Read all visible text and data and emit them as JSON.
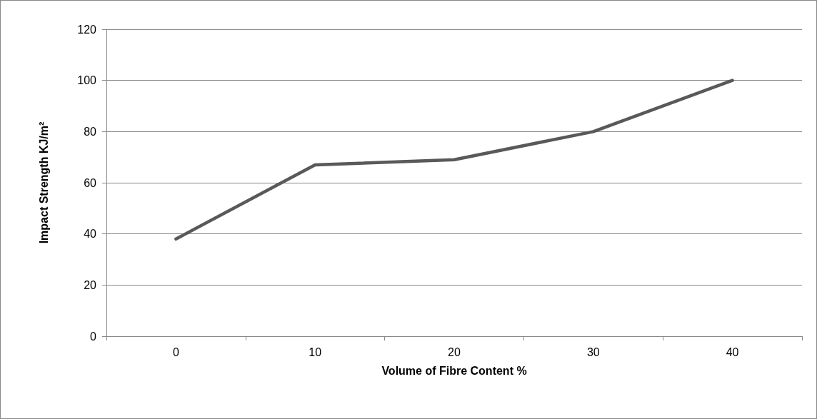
{
  "chart_data": {
    "type": "line",
    "xlabel": "Volume of Fibre Content %",
    "ylabel": "Impact Strength KJ/m²",
    "categories": [
      "0",
      "10",
      "20",
      "30",
      "40"
    ],
    "series": [
      {
        "color": "#595959",
        "values": [
          38,
          67,
          69,
          80,
          100
        ]
      }
    ],
    "ylim": [
      0,
      120
    ],
    "yticks": [
      0,
      20,
      40,
      60,
      80,
      100,
      120
    ],
    "grid": "y",
    "marker": "none",
    "line_style": "solid"
  }
}
